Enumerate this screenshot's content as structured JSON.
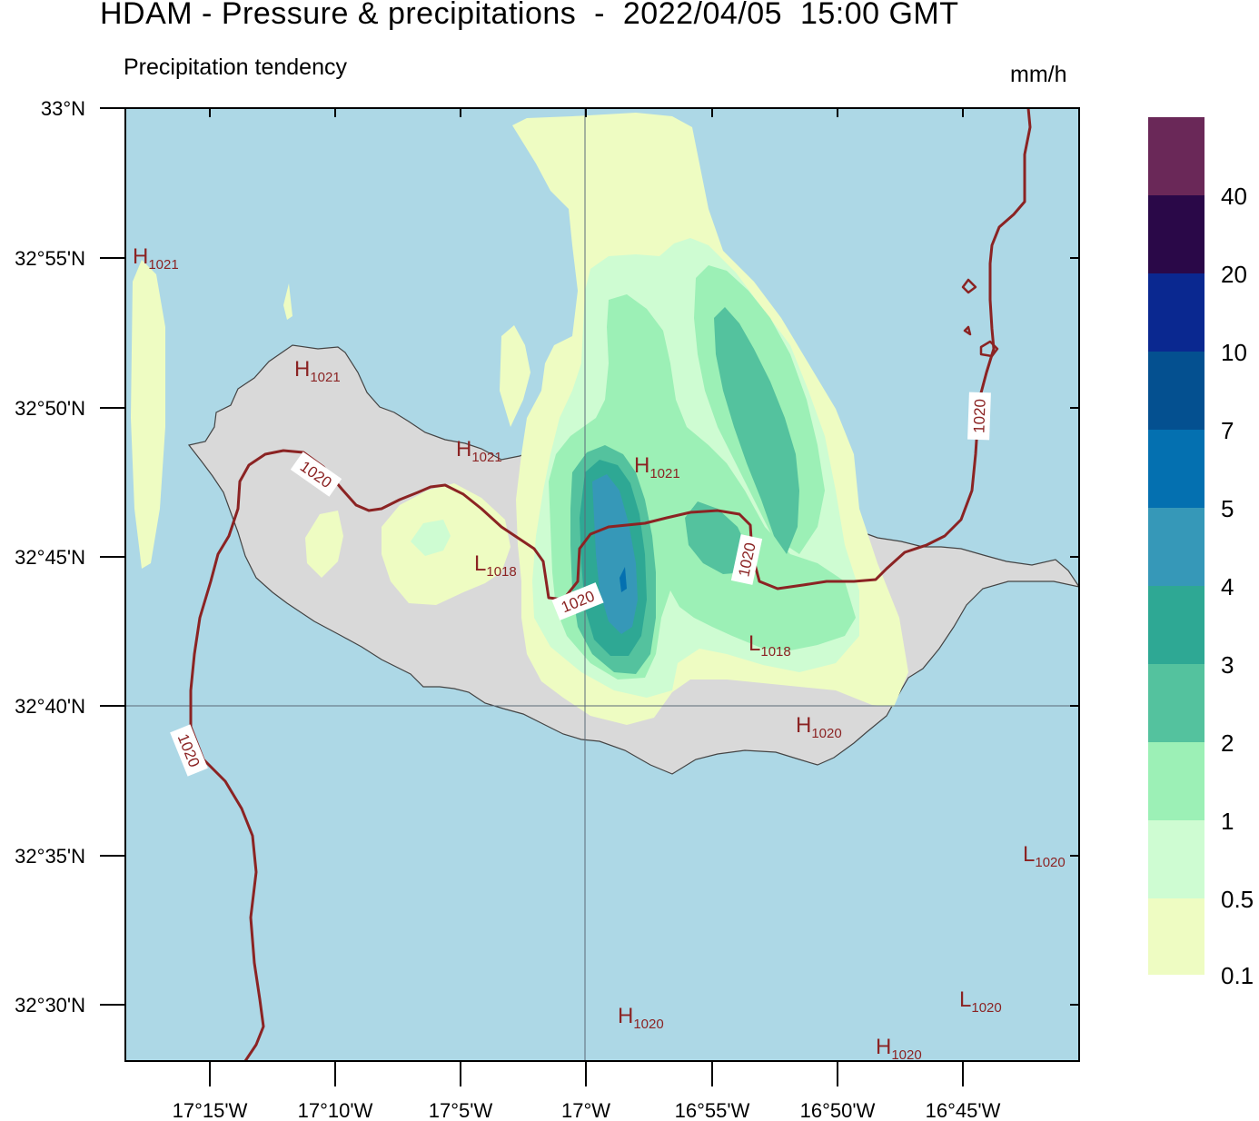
{
  "title": "HDAM - Pressure & precipitations  -  2022/04/05  15:00 GMT",
  "subtitle": "Precipitation tendency",
  "units": "mm/h",
  "colors": {
    "sea": "#add8e6",
    "land": "#d9d9d9",
    "isobar": "#8b2323",
    "p01": "#eefcc2",
    "p05": "#cefcd2",
    "p1": "#9cf0b6",
    "p2": "#54c29e",
    "p3": "#2ea894",
    "p4": "#3698b8",
    "p5": "#0470b0",
    "p7": "#045090",
    "p10": "#0a2890",
    "p20": "#2a0848",
    "p40": "#6a2858"
  },
  "axes": {
    "lat_ticks": [
      "33°N",
      "32°55'N",
      "32°50'N",
      "32°45'N",
      "32°40'N",
      "32°35'N",
      "32°30'N"
    ],
    "lon_ticks": [
      "17°15'W",
      "17°10'W",
      "17°5'W",
      "17°W",
      "16°55'W",
      "16°50'W",
      "16°45'W"
    ]
  },
  "legend": {
    "labels": [
      "40",
      "20",
      "10",
      "7",
      "5",
      "4",
      "3",
      "2",
      "1",
      "0.5",
      "0.1"
    ]
  },
  "isobar_labels": [
    "1020",
    "1020",
    "1020",
    "1020",
    "1020"
  ],
  "pressure_centers": [
    {
      "letter": "H",
      "value": "1021"
    },
    {
      "letter": "H",
      "value": "1021"
    },
    {
      "letter": "H",
      "value": "1021"
    },
    {
      "letter": "H",
      "value": "1021"
    },
    {
      "letter": "L",
      "value": "1018"
    },
    {
      "letter": "L",
      "value": "1018"
    },
    {
      "letter": "H",
      "value": "1020"
    },
    {
      "letter": "L",
      "value": "1020"
    },
    {
      "letter": "L",
      "value": "1020"
    },
    {
      "letter": "H",
      "value": "1020"
    },
    {
      "letter": "H",
      "value": "1020"
    }
  ]
}
